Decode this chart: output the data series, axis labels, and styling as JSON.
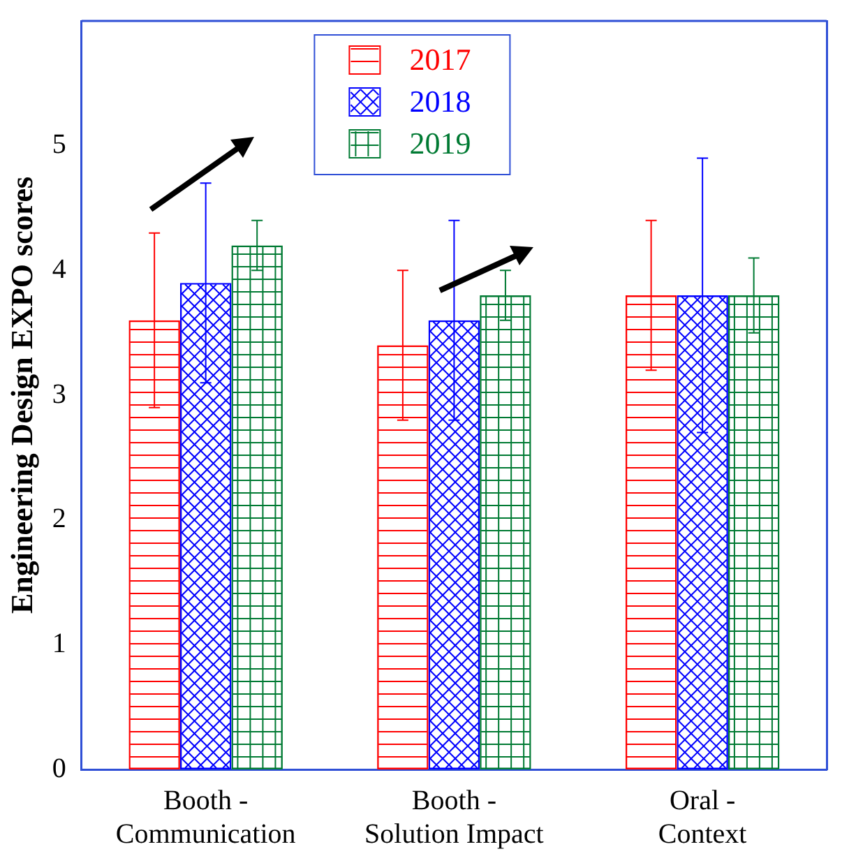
{
  "chart_data": {
    "type": "bar",
    "ylabel": "Engineering Design EXPO scores",
    "categories": [
      "Booth - Communication",
      "Booth - Solution Impact",
      "Oral - Context"
    ],
    "series": [
      {
        "name": "2017",
        "color": "#ff0000",
        "values": [
          3.6,
          3.4,
          3.8
        ],
        "errors": [
          [
            2.9,
            4.3
          ],
          [
            2.8,
            4.0
          ],
          [
            3.2,
            4.4
          ]
        ]
      },
      {
        "name": "2018",
        "color": "#0000ff",
        "values": [
          3.9,
          3.6,
          3.8
        ],
        "errors": [
          [
            3.1,
            4.7
          ],
          [
            2.8,
            4.4
          ],
          [
            2.7,
            4.9
          ]
        ]
      },
      {
        "name": "2019",
        "color": "#007a33",
        "values": [
          4.2,
          3.8,
          3.8
        ],
        "errors": [
          [
            4.0,
            4.4
          ],
          [
            3.6,
            4.0
          ],
          [
            3.5,
            4.1
          ]
        ]
      }
    ],
    "ylim": [
      0,
      6
    ],
    "yticks": [
      0,
      1,
      2,
      3,
      4,
      5
    ],
    "grid": false,
    "legend": "top"
  }
}
